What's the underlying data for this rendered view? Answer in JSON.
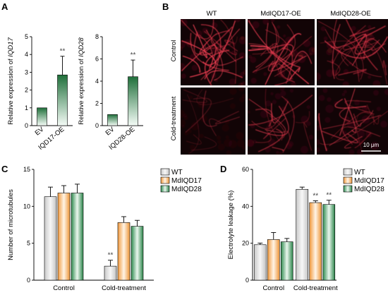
{
  "panels": {
    "A": "A",
    "B": "B",
    "C": "C",
    "D": "D"
  },
  "legend": [
    "WT",
    "MdIQD17",
    "MdIQD28"
  ],
  "images": {
    "columns": [
      "WT",
      "MdIQD17-OE",
      "MdIQD28-OE"
    ],
    "rows": [
      "Control",
      "Cold-treatment"
    ],
    "scale_bar": "10 μm"
  },
  "chart_data": [
    {
      "id": "A1",
      "type": "bar",
      "categories": [
        "EV",
        "IQD17-OE"
      ],
      "values": [
        1.0,
        2.85
      ],
      "errors": [
        0,
        1.05
      ],
      "significance": [
        "",
        "**"
      ],
      "ylabel": "Relative expression of IQD17",
      "ylim": [
        0,
        5
      ],
      "yticks": [
        0,
        1,
        2,
        3,
        4,
        5
      ]
    },
    {
      "id": "A2",
      "type": "bar",
      "categories": [
        "EV",
        "IQD28-OE"
      ],
      "values": [
        1.0,
        4.4
      ],
      "errors": [
        0,
        1.5
      ],
      "significance": [
        "",
        "**"
      ],
      "ylabel": "Relative expression of IQD28",
      "ylim": [
        0,
        8
      ],
      "yticks": [
        0,
        2,
        4,
        6,
        8
      ]
    },
    {
      "id": "C",
      "type": "bar",
      "categories": [
        "Control",
        "Cold-treatment"
      ],
      "series": [
        {
          "name": "WT",
          "values": [
            11.3,
            1.9
          ],
          "errors": [
            1.3,
            0.8
          ],
          "significance": [
            "",
            "**"
          ]
        },
        {
          "name": "MdIQD17",
          "values": [
            11.8,
            7.8
          ],
          "errors": [
            1.0,
            0.8
          ],
          "significance": [
            "",
            ""
          ]
        },
        {
          "name": "MdIQD28",
          "values": [
            11.8,
            7.3
          ],
          "errors": [
            1.2,
            0.8
          ],
          "significance": [
            "",
            ""
          ]
        }
      ],
      "ylabel": "Number of microtubules",
      "ylim": [
        0,
        15
      ],
      "yticks": [
        0,
        5,
        10,
        15
      ],
      "legend": "top-right"
    },
    {
      "id": "D",
      "type": "bar",
      "categories": [
        "Control",
        "Cold-treatment"
      ],
      "series": [
        {
          "name": "WT",
          "values": [
            19.2,
            49.2
          ],
          "errors": [
            0.9,
            1.2
          ],
          "significance": [
            "",
            ""
          ]
        },
        {
          "name": "MdIQD17",
          "values": [
            22.0,
            42.0
          ],
          "errors": [
            3.8,
            1.0
          ],
          "significance": [
            "",
            "**"
          ]
        },
        {
          "name": "MdIQD28",
          "values": [
            20.8,
            41.0
          ],
          "errors": [
            1.8,
            2.3
          ],
          "significance": [
            "",
            "**"
          ]
        }
      ],
      "ylabel": "Electrolyte leakage (%)",
      "ylim": [
        0,
        60
      ],
      "yticks": [
        0,
        20,
        40,
        60
      ],
      "legend": "top-right"
    }
  ]
}
